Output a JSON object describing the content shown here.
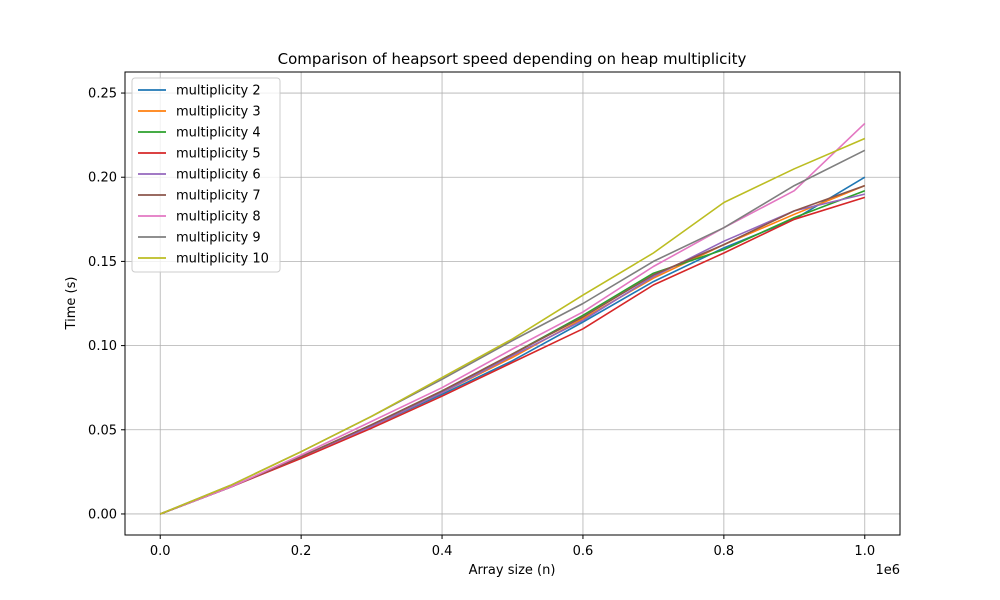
{
  "chart_data": {
    "type": "line",
    "title": "Comparison of heapsort speed depending on heap multiplicity",
    "xlabel": "Array size (n)",
    "ylabel": "Time (s)",
    "x_offset_label": "1e6",
    "xlim": [
      -0.05,
      1.05
    ],
    "ylim": [
      -0.0125,
      0.2625
    ],
    "xticks": [
      0.0,
      0.2,
      0.4,
      0.6,
      0.8,
      1.0
    ],
    "xtick_labels": [
      "0.0",
      "0.2",
      "0.4",
      "0.6",
      "0.8",
      "1.0"
    ],
    "yticks": [
      0.0,
      0.05,
      0.1,
      0.15,
      0.2,
      0.25
    ],
    "ytick_labels": [
      "0.00",
      "0.05",
      "0.10",
      "0.15",
      "0.20",
      "0.25"
    ],
    "grid": true,
    "legend": "upper-left",
    "x": [
      0.0,
      0.1,
      0.2,
      0.3,
      0.4,
      0.5,
      0.6,
      0.7,
      0.8,
      0.9,
      1.0
    ],
    "series": [
      {
        "name": "multiplicity 2",
        "color": "#1f77b4",
        "values": [
          0.0,
          0.016,
          0.034,
          0.052,
          0.071,
          0.091,
          0.114,
          0.138,
          0.158,
          0.175,
          0.2
        ]
      },
      {
        "name": "multiplicity 3",
        "color": "#ff7f0e",
        "values": [
          0.0,
          0.016,
          0.034,
          0.052,
          0.072,
          0.093,
          0.116,
          0.14,
          0.16,
          0.178,
          0.195
        ]
      },
      {
        "name": "multiplicity 4",
        "color": "#2ca02c",
        "values": [
          0.0,
          0.016,
          0.034,
          0.053,
          0.073,
          0.095,
          0.118,
          0.143,
          0.157,
          0.176,
          0.192
        ]
      },
      {
        "name": "multiplicity 5",
        "color": "#d62728",
        "values": [
          0.0,
          0.016,
          0.033,
          0.051,
          0.07,
          0.09,
          0.11,
          0.136,
          0.155,
          0.175,
          0.188
        ]
      },
      {
        "name": "multiplicity 6",
        "color": "#9467bd",
        "values": [
          0.0,
          0.016,
          0.034,
          0.052,
          0.072,
          0.094,
          0.115,
          0.141,
          0.162,
          0.18,
          0.19
        ]
      },
      {
        "name": "multiplicity 7",
        "color": "#8c564b",
        "values": [
          0.0,
          0.016,
          0.034,
          0.053,
          0.073,
          0.095,
          0.117,
          0.142,
          0.16,
          0.18,
          0.195
        ]
      },
      {
        "name": "multiplicity 8",
        "color": "#e377c2",
        "values": [
          0.0,
          0.016,
          0.035,
          0.055,
          0.075,
          0.098,
          0.12,
          0.147,
          0.17,
          0.192,
          0.232
        ]
      },
      {
        "name": "multiplicity 9",
        "color": "#7f7f7f",
        "values": [
          0.0,
          0.017,
          0.037,
          0.058,
          0.08,
          0.103,
          0.125,
          0.15,
          0.17,
          0.195,
          0.216
        ]
      },
      {
        "name": "multiplicity 10",
        "color": "#bcbd22",
        "values": [
          0.0,
          0.017,
          0.037,
          0.058,
          0.081,
          0.104,
          0.13,
          0.155,
          0.185,
          0.205,
          0.223
        ]
      }
    ]
  }
}
